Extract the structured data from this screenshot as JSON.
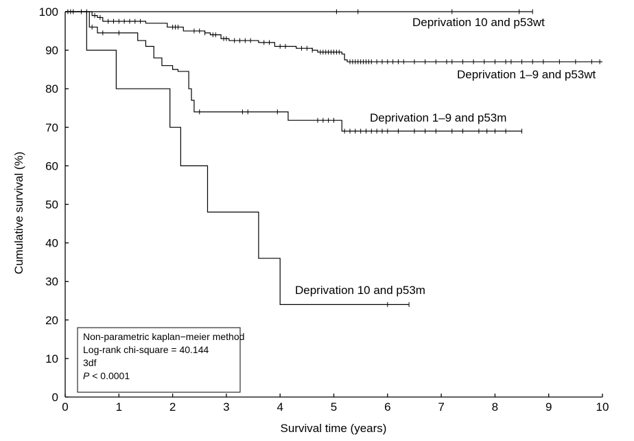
{
  "chart_data": {
    "type": "line",
    "subtype": "kaplan-meier-step",
    "xlabel": "Survival time (years)",
    "ylabel": "Cumulative survival (%)",
    "xlim": [
      0,
      10
    ],
    "ylim": [
      0,
      100
    ],
    "x_ticks": [
      0,
      1,
      2,
      3,
      4,
      5,
      6,
      7,
      8,
      9,
      10
    ],
    "y_ticks": [
      0,
      10,
      20,
      30,
      40,
      50,
      60,
      70,
      80,
      90,
      100
    ],
    "grid": false,
    "series": [
      {
        "name": "Deprivation 10 and p53wt",
        "steps": [
          [
            0,
            100
          ],
          [
            8.7,
            100
          ]
        ],
        "censored": [
          0.05,
          0.1,
          0.15,
          0.4,
          5.05,
          5.45,
          7.2,
          8.45,
          8.7
        ]
      },
      {
        "name": "Deprivation 1–9 and p53wt",
        "steps": [
          [
            0,
            100
          ],
          [
            0.5,
            99
          ],
          [
            0.6,
            98.5
          ],
          [
            0.7,
            97.5
          ],
          [
            1.5,
            97
          ],
          [
            1.9,
            96
          ],
          [
            2.2,
            95
          ],
          [
            2.6,
            94.5
          ],
          [
            2.7,
            94
          ],
          [
            2.9,
            93
          ],
          [
            3.05,
            92.5
          ],
          [
            3.6,
            92
          ],
          [
            3.9,
            91
          ],
          [
            4.3,
            90.5
          ],
          [
            4.6,
            90
          ],
          [
            4.7,
            89.5
          ],
          [
            5.15,
            89
          ],
          [
            5.2,
            87.5
          ],
          [
            5.25,
            87
          ],
          [
            10,
            87
          ]
        ],
        "censored": [
          0.3,
          0.55,
          0.65,
          0.8,
          0.9,
          1.0,
          1.1,
          1.2,
          1.3,
          1.4,
          2.0,
          2.05,
          2.1,
          2.4,
          2.5,
          2.6,
          2.75,
          2.8,
          2.95,
          3.0,
          3.15,
          3.25,
          3.35,
          3.45,
          3.7,
          3.8,
          4.0,
          4.1,
          4.4,
          4.5,
          4.6,
          4.75,
          4.8,
          4.85,
          4.9,
          4.95,
          5.0,
          5.05,
          5.1,
          5.3,
          5.35,
          5.4,
          5.45,
          5.5,
          5.55,
          5.6,
          5.65,
          5.7,
          5.8,
          5.9,
          6.0,
          6.1,
          6.2,
          6.3,
          6.5,
          6.7,
          6.9,
          7.1,
          7.2,
          7.4,
          7.6,
          7.8,
          8.0,
          8.2,
          8.3,
          8.5,
          8.7,
          8.9,
          9.2,
          9.5,
          9.8,
          9.95
        ]
      },
      {
        "name": "Deprivation 1–9 and p53m",
        "steps": [
          [
            0,
            100
          ],
          [
            0.45,
            96
          ],
          [
            0.6,
            94.5
          ],
          [
            1.35,
            92.5
          ],
          [
            1.5,
            91
          ],
          [
            1.65,
            88
          ],
          [
            1.8,
            86
          ],
          [
            2.0,
            85
          ],
          [
            2.1,
            84.5
          ],
          [
            2.3,
            80
          ],
          [
            2.35,
            77
          ],
          [
            2.4,
            74
          ],
          [
            4.15,
            71.8
          ],
          [
            5.15,
            69
          ],
          [
            8.5,
            69
          ]
        ],
        "censored": [
          0.5,
          0.7,
          1.0,
          2.5,
          3.3,
          3.4,
          3.95,
          4.7,
          4.8,
          4.9,
          5.0,
          5.2,
          5.3,
          5.4,
          5.5,
          5.6,
          5.7,
          5.8,
          5.9,
          6.0,
          6.2,
          6.5,
          6.7,
          6.9,
          7.2,
          7.4,
          7.7,
          7.85,
          8.0,
          8.2,
          8.5
        ]
      },
      {
        "name": "Deprivation 10 and p53m",
        "steps": [
          [
            0,
            100
          ],
          [
            0.4,
            90
          ],
          [
            0.95,
            80
          ],
          [
            1.95,
            70
          ],
          [
            2.15,
            60
          ],
          [
            2.65,
            48
          ],
          [
            3.6,
            36
          ],
          [
            4.0,
            24
          ],
          [
            6.4,
            24
          ]
        ],
        "censored": [
          6.0,
          6.4
        ]
      }
    ],
    "stats_box": {
      "lines": [
        "Non-parametric kaplan−meier method",
        "Log-rank chi-square = 40.144",
        "3df"
      ],
      "p_symbol": "P",
      "p_value": " < 0.0001"
    }
  }
}
